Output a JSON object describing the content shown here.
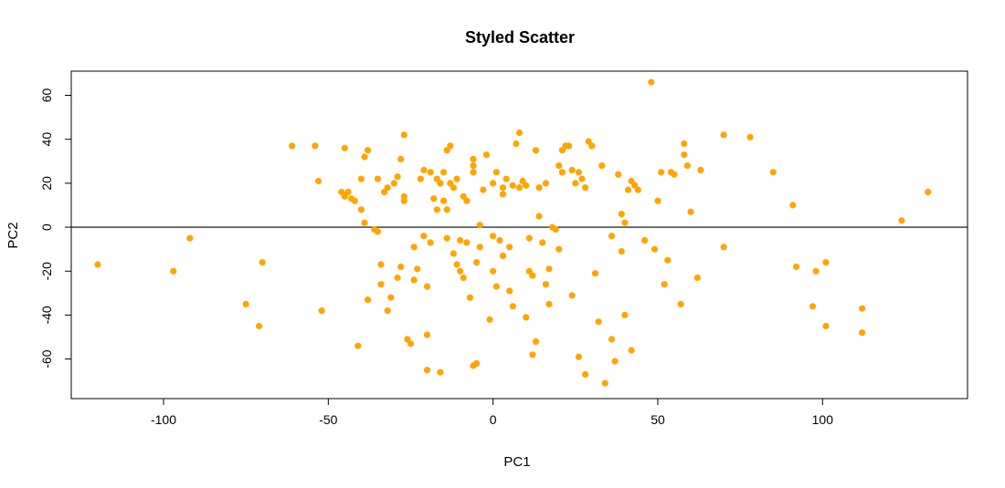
{
  "chart_data": {
    "type": "scatter",
    "title": "Styled Scatter",
    "xlabel": "PC1",
    "ylabel": "PC2",
    "xlim": [
      -128,
      144
    ],
    "ylim": [
      -78,
      71
    ],
    "xticks": [
      -100,
      -50,
      0,
      50,
      100
    ],
    "yticks": [
      -60,
      -40,
      -20,
      0,
      20,
      40,
      60
    ],
    "xtick_labels": [
      "-100",
      "-50",
      "0",
      "50",
      "100"
    ],
    "ytick_labels": [
      "-60",
      "-40",
      "-20",
      "0",
      "20",
      "40",
      "60"
    ],
    "hline": 0,
    "grid": false,
    "point_color": "#FFA500",
    "points": [
      [
        -120,
        -17
      ],
      [
        -97,
        -20
      ],
      [
        -92,
        -5
      ],
      [
        -75,
        -35
      ],
      [
        -71,
        -45
      ],
      [
        -70,
        -16
      ],
      [
        -61,
        37
      ],
      [
        -54,
        37
      ],
      [
        -53,
        21
      ],
      [
        -52,
        -38
      ],
      [
        -46,
        16
      ],
      [
        -45,
        14
      ],
      [
        -45,
        36
      ],
      [
        -44,
        16
      ],
      [
        -43,
        13
      ],
      [
        -42,
        12
      ],
      [
        -41,
        -54
      ],
      [
        -40,
        8
      ],
      [
        -40,
        22
      ],
      [
        -39,
        2
      ],
      [
        -39,
        32
      ],
      [
        -38,
        35
      ],
      [
        -38,
        -33
      ],
      [
        -36,
        -1
      ],
      [
        -35,
        -2
      ],
      [
        -35,
        22
      ],
      [
        -34,
        -17
      ],
      [
        -34,
        -26
      ],
      [
        -33,
        16
      ],
      [
        -32,
        18
      ],
      [
        -32,
        -38
      ],
      [
        -31,
        -32
      ],
      [
        -30,
        20
      ],
      [
        -29,
        -23
      ],
      [
        -29,
        23
      ],
      [
        -28,
        -18
      ],
      [
        -28,
        31
      ],
      [
        -27,
        42
      ],
      [
        -27,
        12
      ],
      [
        -27,
        14
      ],
      [
        -26,
        -51
      ],
      [
        -25,
        -53
      ],
      [
        -24,
        -9
      ],
      [
        -24,
        -24
      ],
      [
        -23,
        -19
      ],
      [
        -22,
        22
      ],
      [
        -21,
        26
      ],
      [
        -21,
        -4
      ],
      [
        -20,
        -27
      ],
      [
        -20,
        -49
      ],
      [
        -20,
        -65
      ],
      [
        -19,
        -7
      ],
      [
        -19,
        25
      ],
      [
        -18,
        13
      ],
      [
        -17,
        22
      ],
      [
        -17,
        8
      ],
      [
        -16,
        20
      ],
      [
        -16,
        -66
      ],
      [
        -15,
        25
      ],
      [
        -15,
        12
      ],
      [
        -14,
        -5
      ],
      [
        -14,
        8
      ],
      [
        -14,
        35
      ],
      [
        -13,
        37
      ],
      [
        -13,
        20
      ],
      [
        -12,
        -12
      ],
      [
        -12,
        18
      ],
      [
        -11,
        -17
      ],
      [
        -11,
        22
      ],
      [
        -10,
        -20
      ],
      [
        -10,
        -6
      ],
      [
        -9,
        14
      ],
      [
        -9,
        -23
      ],
      [
        -8,
        -7
      ],
      [
        -8,
        12
      ],
      [
        -7,
        -32
      ],
      [
        -6,
        25
      ],
      [
        -6,
        28
      ],
      [
        -6,
        31
      ],
      [
        -6,
        -63
      ],
      [
        -5,
        -16
      ],
      [
        -5,
        -62
      ],
      [
        -4,
        -9
      ],
      [
        -4,
        1
      ],
      [
        -3,
        17
      ],
      [
        -2,
        33
      ],
      [
        -1,
        -42
      ],
      [
        0,
        20
      ],
      [
        0,
        -4
      ],
      [
        0,
        -20
      ],
      [
        1,
        -27
      ],
      [
        1,
        25
      ],
      [
        2,
        -6
      ],
      [
        3,
        -13
      ],
      [
        3,
        15
      ],
      [
        3,
        18
      ],
      [
        4,
        22
      ],
      [
        5,
        -9
      ],
      [
        5,
        -29
      ],
      [
        6,
        19
      ],
      [
        6,
        -36
      ],
      [
        7,
        38
      ],
      [
        8,
        43
      ],
      [
        8,
        18
      ],
      [
        9,
        21
      ],
      [
        10,
        19
      ],
      [
        10,
        -41
      ],
      [
        11,
        -5
      ],
      [
        11,
        -20
      ],
      [
        12,
        -22
      ],
      [
        12,
        -58
      ],
      [
        13,
        -52
      ],
      [
        13,
        35
      ],
      [
        14,
        18
      ],
      [
        14,
        5
      ],
      [
        15,
        -7
      ],
      [
        16,
        -26
      ],
      [
        16,
        20
      ],
      [
        17,
        -35
      ],
      [
        17,
        -19
      ],
      [
        18,
        0
      ],
      [
        19,
        -1
      ],
      [
        20,
        28
      ],
      [
        20,
        -10
      ],
      [
        21,
        35
      ],
      [
        21,
        25
      ],
      [
        22,
        37
      ],
      [
        23,
        37
      ],
      [
        24,
        26
      ],
      [
        24,
        -31
      ],
      [
        25,
        20
      ],
      [
        26,
        -59
      ],
      [
        26,
        25
      ],
      [
        27,
        22
      ],
      [
        28,
        -67
      ],
      [
        28,
        18
      ],
      [
        29,
        39
      ],
      [
        30,
        37
      ],
      [
        31,
        -21
      ],
      [
        32,
        -43
      ],
      [
        33,
        28
      ],
      [
        34,
        -71
      ],
      [
        36,
        -4
      ],
      [
        36,
        -51
      ],
      [
        37,
        -61
      ],
      [
        38,
        24
      ],
      [
        39,
        -11
      ],
      [
        39,
        6
      ],
      [
        40,
        2
      ],
      [
        40,
        -40
      ],
      [
        41,
        17
      ],
      [
        42,
        21
      ],
      [
        42,
        -56
      ],
      [
        43,
        19
      ],
      [
        44,
        17
      ],
      [
        46,
        -6
      ],
      [
        49,
        -10
      ],
      [
        50,
        12
      ],
      [
        51,
        25
      ],
      [
        52,
        -26
      ],
      [
        53,
        -15
      ],
      [
        54,
        25
      ],
      [
        55,
        24
      ],
      [
        57,
        -35
      ],
      [
        58,
        38
      ],
      [
        58,
        33
      ],
      [
        59,
        28
      ],
      [
        60,
        7
      ],
      [
        62,
        -23
      ],
      [
        63,
        26
      ],
      [
        70,
        42
      ],
      [
        70,
        -9
      ],
      [
        78,
        41
      ],
      [
        85,
        25
      ],
      [
        91,
        10
      ],
      [
        92,
        -18
      ],
      [
        97,
        -36
      ],
      [
        98,
        -20
      ],
      [
        101,
        -45
      ],
      [
        101,
        -16
      ],
      [
        112,
        -37
      ],
      [
        112,
        -48
      ],
      [
        124,
        3
      ],
      [
        132,
        16
      ],
      [
        48,
        66
      ]
    ]
  }
}
